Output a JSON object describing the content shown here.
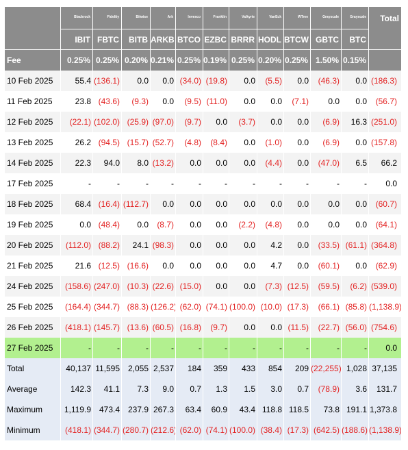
{
  "issuers": [
    "Blackrock",
    "Fidelity",
    "Bitwise",
    "Ark",
    "Invesco",
    "Franklin",
    "Valkyrie",
    "VanEck",
    "WTree",
    "Grayscale",
    "Grayscale"
  ],
  "total_label": "Total",
  "tickers": [
    "IBIT",
    "FBTC",
    "BITB",
    "ARKB",
    "BTCO",
    "EZBC",
    "BRRR",
    "HODL",
    "BTCW",
    "GBTC",
    "BTC"
  ],
  "fee_label": "Fee",
  "fees": [
    "0.25%",
    "0.25%",
    "0.20%",
    "0.21%",
    "0.25%",
    "0.19%",
    "0.25%",
    "0.20%",
    "0.25%",
    "1.50%",
    "0.15%"
  ],
  "rows": [
    {
      "date": "10 Feb 2025",
      "values": [
        "55.4",
        "(136.1)",
        "0.0",
        "0.0",
        "(34.0)",
        "(19.8)",
        "0.0",
        "(5.5)",
        "0.0",
        "(46.3)",
        "0.0",
        "(186.3)"
      ]
    },
    {
      "date": "11 Feb 2025",
      "values": [
        "23.8",
        "(43.6)",
        "(9.3)",
        "0.0",
        "(9.5)",
        "(11.0)",
        "0.0",
        "0.0",
        "(7.1)",
        "0.0",
        "0.0",
        "(56.7)"
      ]
    },
    {
      "date": "12 Feb 2025",
      "values": [
        "(22.1)",
        "(102.0)",
        "(25.9)",
        "(97.0)",
        "(9.7)",
        "0.0",
        "(3.7)",
        "0.0",
        "0.0",
        "(6.9)",
        "16.3",
        "(251.0)"
      ]
    },
    {
      "date": "13 Feb 2025",
      "values": [
        "26.2",
        "(94.5)",
        "(15.7)",
        "(52.7)",
        "(4.8)",
        "(8.4)",
        "0.0",
        "(1.0)",
        "0.0",
        "(6.9)",
        "0.0",
        "(157.8)"
      ]
    },
    {
      "date": "14 Feb 2025",
      "values": [
        "22.3",
        "94.0",
        "8.0",
        "(13.2)",
        "0.0",
        "0.0",
        "0.0",
        "(4.4)",
        "0.0",
        "(47.0)",
        "6.5",
        "66.2"
      ]
    },
    {
      "date": "17 Feb 2025",
      "values": [
        "-",
        "-",
        "-",
        "-",
        "-",
        "-",
        "-",
        "-",
        "-",
        "-",
        "-",
        "0.0"
      ]
    },
    {
      "date": "18 Feb 2025",
      "values": [
        "68.4",
        "(16.4)",
        "(112.7)",
        "0.0",
        "0.0",
        "0.0",
        "0.0",
        "0.0",
        "0.0",
        "0.0",
        "0.0",
        "(60.7)"
      ]
    },
    {
      "date": "19 Feb 2025",
      "values": [
        "0.0",
        "(48.4)",
        "0.0",
        "(8.7)",
        "0.0",
        "0.0",
        "(2.2)",
        "(4.8)",
        "0.0",
        "0.0",
        "0.0",
        "(64.1)"
      ]
    },
    {
      "date": "20 Feb 2025",
      "values": [
        "(112.0)",
        "(88.2)",
        "24.1",
        "(98.3)",
        "0.0",
        "0.0",
        "0.0",
        "4.2",
        "0.0",
        "(33.5)",
        "(61.1)",
        "(364.8)"
      ]
    },
    {
      "date": "21 Feb 2025",
      "values": [
        "21.6",
        "(12.5)",
        "(16.6)",
        "0.0",
        "0.0",
        "0.0",
        "0.0",
        "4.7",
        "0.0",
        "(60.1)",
        "0.0",
        "(62.9)"
      ]
    },
    {
      "date": "24 Feb 2025",
      "values": [
        "(158.6)",
        "(247.0)",
        "(10.3)",
        "(22.6)",
        "(15.0)",
        "0.0",
        "0.0",
        "(7.3)",
        "(12.5)",
        "(59.5)",
        "(6.2)",
        "(539.0)"
      ]
    },
    {
      "date": "25 Feb 2025",
      "values": [
        "(164.4)",
        "(344.7)",
        "(88.3)",
        "(126.2)",
        "(62.0)",
        "(74.1)",
        "(100.0)",
        "(10.0)",
        "(17.3)",
        "(66.1)",
        "(85.8)",
        "(1,138.9)"
      ]
    },
    {
      "date": "26 Feb 2025",
      "values": [
        "(418.1)",
        "(145.7)",
        "(13.6)",
        "(60.5)",
        "(16.8)",
        "(9.7)",
        "0.0",
        "0.0",
        "(11.5)",
        "(22.7)",
        "(56.0)",
        "(754.6)"
      ]
    },
    {
      "date": "27 Feb 2025",
      "values": [
        "-",
        "-",
        "-",
        "-",
        "-",
        "-",
        "-",
        "-",
        "-",
        "-",
        "-",
        "0.0"
      ]
    }
  ],
  "highlight_row_index": 13,
  "highlight_color": "#b2f08f",
  "header_color": "#8c8c8c",
  "negative_color": "#e32222",
  "stat_row_color": "#e5ebf5",
  "stats": [
    {
      "label": "Total",
      "values": [
        "40,137",
        "11,595",
        "2,055",
        "2,537",
        "184",
        "359",
        "433",
        "854",
        "209",
        "(22,255)",
        "1,028",
        "37,135"
      ]
    },
    {
      "label": "Average",
      "values": [
        "142.3",
        "41.1",
        "7.3",
        "9.0",
        "0.7",
        "1.3",
        "1.5",
        "3.0",
        "0.7",
        "(78.9)",
        "3.6",
        "131.7"
      ]
    },
    {
      "label": "Maximum",
      "values": [
        "1,119.9",
        "473.4",
        "237.9",
        "267.3",
        "63.4",
        "60.9",
        "43.4",
        "118.8",
        "118.5",
        "73.8",
        "191.1",
        "1,373.8"
      ]
    },
    {
      "label": "Minimum",
      "values": [
        "(418.1)",
        "(344.7)",
        "(280.7)",
        "(212.6)",
        "(62.0)",
        "(74.1)",
        "(100.0)",
        "(38.4)",
        "(17.3)",
        "(642.5)",
        "(188.6)",
        "(1,138.9)"
      ]
    }
  ]
}
